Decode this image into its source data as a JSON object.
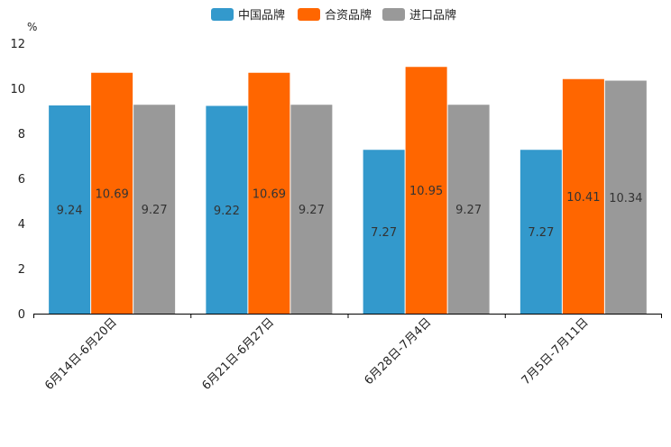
{
  "chart_data": {
    "type": "bar",
    "title": "",
    "ylabel": "%",
    "xlabel": "",
    "ylim": [
      0,
      12
    ],
    "yticks": [
      "0",
      "2",
      "4",
      "6",
      "8",
      "10",
      "12"
    ],
    "categories": [
      "6月14日-6月20日",
      "6月21日-6月27日",
      "6月28日-7月4日",
      "7月5日-7月11日"
    ],
    "legend_position": "top-center",
    "series": [
      {
        "name": "中国品牌",
        "color": "#3399cc",
        "values": [
          9.24,
          9.22,
          7.27,
          7.27
        ],
        "labels": [
          "9.24",
          "9.22",
          "7.27",
          "7.27"
        ]
      },
      {
        "name": "合资品牌",
        "color": "#ff6600",
        "values": [
          10.69,
          10.69,
          10.95,
          10.41
        ],
        "labels": [
          "10.69",
          "10.69",
          "10.95",
          "10.41"
        ]
      },
      {
        "name": "进口品牌",
        "color": "#999999",
        "values": [
          9.27,
          9.27,
          9.27,
          10.34
        ],
        "labels": [
          "9.27",
          "9.27",
          "9.27",
          "10.34"
        ]
      }
    ]
  }
}
